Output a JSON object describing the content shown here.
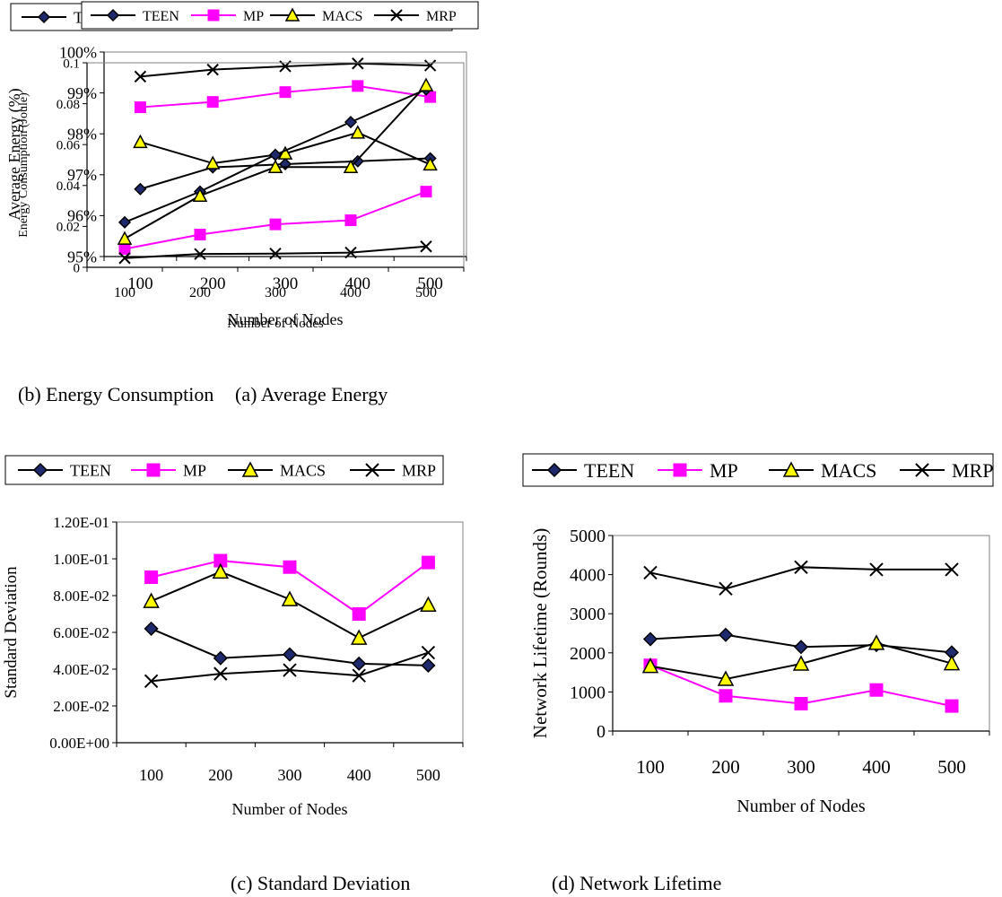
{
  "chart_data": [
    {
      "type": "line",
      "caption": "(a) Average Energy",
      "xlabel": "Number of Nodes",
      "ylabel": "Average Energy (%)",
      "categories": [
        "100",
        "200",
        "300",
        "400",
        "500"
      ],
      "ylim": [
        95,
        100
      ],
      "yticks": [
        95,
        96,
        97,
        98,
        99,
        100
      ],
      "ytick_labels": [
        "95%",
        "96%",
        "97%",
        "98%",
        "99%",
        "100%"
      ],
      "legend": "top",
      "series": [
        {
          "name": "TEEN",
          "marker": "diamond",
          "color": "#000000",
          "fill": "#1f2a6e",
          "values": [
            96.65,
            97.18,
            97.26,
            97.33,
            97.4
          ]
        },
        {
          "name": "MP",
          "marker": "square",
          "color": "#ff00ff",
          "fill": "#ff00ff",
          "values": [
            98.65,
            98.78,
            99.02,
            99.17,
            98.9
          ]
        },
        {
          "name": "MACS",
          "marker": "triangle",
          "color": "#000000",
          "fill": "#ffff00",
          "values": [
            97.8,
            97.28,
            97.52,
            98.03,
            97.25
          ]
        },
        {
          "name": "MRP",
          "marker": "x",
          "color": "#000000",
          "fill": "none",
          "values": [
            99.4,
            99.57,
            99.65,
            99.72,
            99.67
          ]
        }
      ]
    },
    {
      "type": "line",
      "caption": "(b) Energy Consumption",
      "xlabel": "Number of Nodes",
      "ylabel": "Energy Consumption (Joule)",
      "categories": [
        "100",
        "200",
        "300",
        "400",
        "500"
      ],
      "ylim": [
        0,
        0.1
      ],
      "yticks": [
        0,
        0.02,
        0.04,
        0.06,
        0.08,
        0.1
      ],
      "ytick_labels": [
        "0",
        "0.02",
        "0.04",
        "0.06",
        "0.08",
        "0.1"
      ],
      "legend": "top",
      "series": [
        {
          "name": "TEEN",
          "marker": "diamond",
          "color": "#000000",
          "fill": "#1f2a6e",
          "values": [
            0.022,
            0.037,
            0.055,
            0.071,
            0.087
          ]
        },
        {
          "name": "MP",
          "marker": "square",
          "color": "#ff00ff",
          "fill": "#ff00ff",
          "values": [
            0.009,
            0.016,
            0.021,
            0.023,
            0.037
          ]
        },
        {
          "name": "MACS",
          "marker": "triangle",
          "color": "#000000",
          "fill": "#ffff00",
          "values": [
            0.014,
            0.035,
            0.049,
            0.049,
            0.089
          ]
        },
        {
          "name": "MRP",
          "marker": "x",
          "color": "#000000",
          "fill": "none",
          "values": [
            0.0045,
            0.0065,
            0.0067,
            0.0072,
            0.0102
          ]
        }
      ]
    },
    {
      "type": "line",
      "caption": "(c) Standard Deviation",
      "xlabel": "Number of Nodes",
      "ylabel": "Standard Deviation",
      "categories": [
        "100",
        "200",
        "300",
        "400",
        "500"
      ],
      "ylim": [
        0,
        0.12
      ],
      "yticks": [
        0,
        0.02,
        0.04,
        0.06,
        0.08,
        0.1,
        0.12
      ],
      "ytick_labels": [
        "0.00E+00",
        "2.00E-02",
        "4.00E-02",
        "6.00E-02",
        "8.00E-02",
        "1.00E-01",
        "1.20E-01"
      ],
      "legend": "top",
      "series": [
        {
          "name": "TEEN",
          "marker": "diamond",
          "color": "#000000",
          "fill": "#1f2a6e",
          "values": [
            0.062,
            0.046,
            0.048,
            0.043,
            0.042
          ]
        },
        {
          "name": "MP",
          "marker": "square",
          "color": "#ff00ff",
          "fill": "#ff00ff",
          "values": [
            0.09,
            0.099,
            0.0955,
            0.07,
            0.098
          ]
        },
        {
          "name": "MACS",
          "marker": "triangle",
          "color": "#000000",
          "fill": "#ffff00",
          "values": [
            0.077,
            0.093,
            0.078,
            0.057,
            0.075
          ]
        },
        {
          "name": "MRP",
          "marker": "x",
          "color": "#000000",
          "fill": "none",
          "values": [
            0.0335,
            0.0375,
            0.0395,
            0.0365,
            0.049
          ]
        }
      ]
    },
    {
      "type": "line",
      "caption": "(d) Network Lifetime",
      "xlabel": "Number of Nodes",
      "ylabel": "Network Lifetime (Rounds)",
      "categories": [
        "100",
        "200",
        "300",
        "400",
        "500"
      ],
      "ylim": [
        0,
        5000
      ],
      "yticks": [
        0,
        1000,
        2000,
        3000,
        4000,
        5000
      ],
      "ytick_labels": [
        "0",
        "1000",
        "2000",
        "3000",
        "4000",
        "5000"
      ],
      "legend": "top",
      "series": [
        {
          "name": "TEEN",
          "marker": "diamond",
          "color": "#000000",
          "fill": "#1f2a6e",
          "values": [
            2350,
            2460,
            2150,
            2200,
            2010
          ]
        },
        {
          "name": "MP",
          "marker": "square",
          "color": "#ff00ff",
          "fill": "#ff00ff",
          "values": [
            1680,
            900,
            700,
            1050,
            640
          ]
        },
        {
          "name": "MACS",
          "marker": "triangle",
          "color": "#000000",
          "fill": "#ffff00",
          "values": [
            1660,
            1330,
            1720,
            2250,
            1730
          ]
        },
        {
          "name": "MRP",
          "marker": "x",
          "color": "#000000",
          "fill": "none",
          "values": [
            4050,
            3640,
            4190,
            4130,
            4130
          ]
        }
      ]
    }
  ]
}
